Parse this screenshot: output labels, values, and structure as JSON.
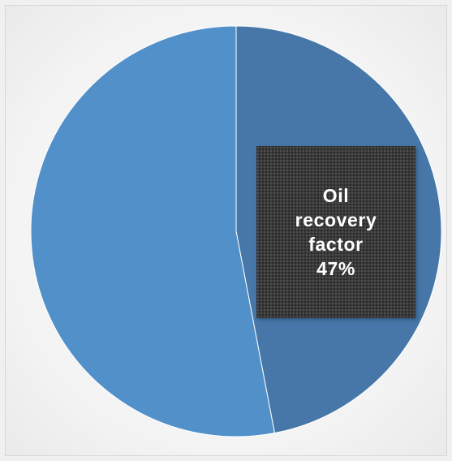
{
  "chart_data": {
    "type": "pie",
    "slices": [
      {
        "label": "Oil recovery factor",
        "value": 47,
        "color": "#4677a8"
      },
      {
        "label": "",
        "value": 53,
        "color": "#5290c9"
      }
    ],
    "data_label": {
      "lines": [
        "Oil",
        "recovery",
        "factor",
        "47%"
      ]
    }
  }
}
